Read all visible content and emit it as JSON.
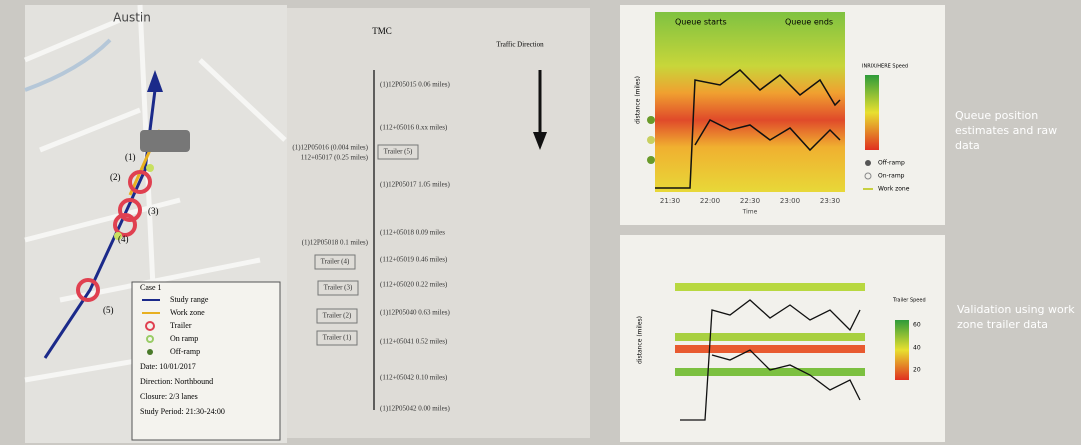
{
  "map": {
    "city": "Austin",
    "markers": [
      "(1)",
      "(2)",
      "(3)",
      "(4)",
      "(5)"
    ],
    "legend": {
      "title": "Case 1",
      "items": [
        "Study range",
        "Work zone",
        "Trailer",
        "On ramp",
        "Off-ramp"
      ],
      "details": [
        "Date: 10/01/2017",
        "Direction: Northbound",
        "Closure: 2/3 lanes",
        "Study Period: 21:30-24:00"
      ]
    }
  },
  "tmc": {
    "title": "TMC",
    "direction": "Traffic Direction",
    "segments": [
      "(1)12P05015 0.06 miles)",
      "(112+05016 0.xx miles)",
      "(1)12P05016 (0.004 miles)",
      "112+05017 (0.25 miles)",
      "(1)12P05017 1.05 miles)",
      "(112+05018 0.09 miles",
      "(1)12P05018 0.1 miles)",
      "(112+05019 0.46 miles)",
      "(112+05020 0.22 miles)",
      "(1)12P05040 0.63 miles)",
      "(112+05041 0.52 miles)",
      "(112+05042 0.10 miles)",
      "(1)12P05042 0.00 miles)"
    ],
    "trailers": [
      "Trailer (5)",
      "Trailer (4)",
      "Trailer (3)",
      "Trailer (2)",
      "Trailer (1)"
    ]
  },
  "chart_top": {
    "annotations": [
      "Queue starts",
      "Queue ends"
    ],
    "y_label": "distance (miles)",
    "x_label": "Time",
    "x_ticks": [
      "21:30",
      "22:00",
      "22:30",
      "23:00",
      "23:30"
    ],
    "legend_title": "INRIX/HERE Speed",
    "legend_items": [
      "Off-ramp",
      "On-ramp",
      "Work zone"
    ]
  },
  "chart_bottom": {
    "y_label": "distance (miles)",
    "legend_title": "Trailer Speed",
    "legend_ticks": [
      "60",
      "40",
      "20"
    ]
  },
  "captions": [
    "Queue position estimates and raw data",
    "Validation using work zone trailer data"
  ]
}
